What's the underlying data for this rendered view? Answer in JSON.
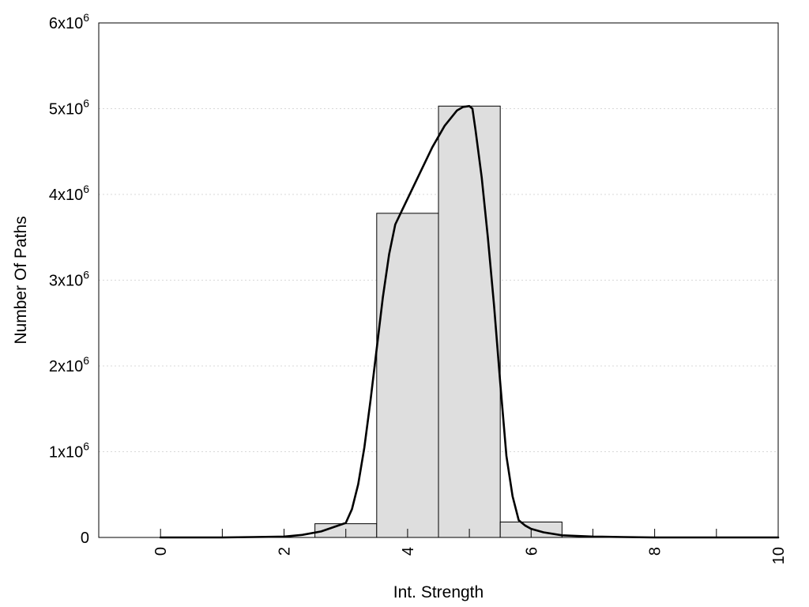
{
  "chart_data": {
    "type": "bar",
    "xlabel": "Int. Strength",
    "ylabel": "Number Of Paths",
    "xlim": [
      -1,
      10
    ],
    "ylim": [
      0,
      6000000
    ],
    "grid": true,
    "x_ticks": [
      "0",
      "2",
      "4",
      "6",
      "8",
      "10"
    ],
    "x_tick_values": [
      0,
      2,
      4,
      6,
      8,
      10
    ],
    "y_ticks": [
      {
        "value": 0,
        "base": "0",
        "exp": ""
      },
      {
        "value": 1000000,
        "base": "1x10",
        "exp": "6"
      },
      {
        "value": 2000000,
        "base": "2x10",
        "exp": "6"
      },
      {
        "value": 3000000,
        "base": "3x10",
        "exp": "6"
      },
      {
        "value": 4000000,
        "base": "4x10",
        "exp": "6"
      },
      {
        "value": 5000000,
        "base": "5x10",
        "exp": "6"
      },
      {
        "value": 6000000,
        "base": "6x10",
        "exp": "6"
      }
    ],
    "bars": [
      {
        "x": 0,
        "value": 0
      },
      {
        "x": 1,
        "value": 0
      },
      {
        "x": 2,
        "value": 0
      },
      {
        "x": 3,
        "value": 160000
      },
      {
        "x": 4,
        "value": 3780000
      },
      {
        "x": 5,
        "value": 5030000
      },
      {
        "x": 6,
        "value": 180000
      },
      {
        "x": 7,
        "value": 0
      },
      {
        "x": 8,
        "value": 0
      },
      {
        "x": 9,
        "value": 0
      },
      {
        "x": 10,
        "value": 0
      }
    ],
    "bar_width": 1,
    "bar_color": "#dedede",
    "curve_color": "#000000",
    "curve": {
      "x": [
        0,
        1,
        1.5,
        2,
        2.3,
        2.6,
        2.8,
        3.0,
        3.1,
        3.2,
        3.3,
        3.4,
        3.5,
        3.6,
        3.7,
        3.8,
        3.9,
        4.0,
        4.2,
        4.4,
        4.6,
        4.8,
        4.9,
        5.0,
        5.05,
        5.1,
        5.2,
        5.3,
        5.4,
        5.5,
        5.6,
        5.7,
        5.8,
        5.9,
        6.0,
        6.2,
        6.5,
        7.0,
        7.5,
        8,
        9,
        10
      ],
      "y": [
        0,
        0,
        5000,
        10000,
        30000,
        70000,
        120000,
        170000,
        330000,
        620000,
        1050000,
        1600000,
        2200000,
        2800000,
        3300000,
        3650000,
        3800000,
        3950000,
        4250000,
        4550000,
        4800000,
        4980000,
        5020000,
        5030000,
        5000000,
        4750000,
        4200000,
        3500000,
        2700000,
        1800000,
        950000,
        480000,
        200000,
        140000,
        100000,
        60000,
        25000,
        10000,
        5000,
        0,
        0,
        0
      ]
    }
  }
}
